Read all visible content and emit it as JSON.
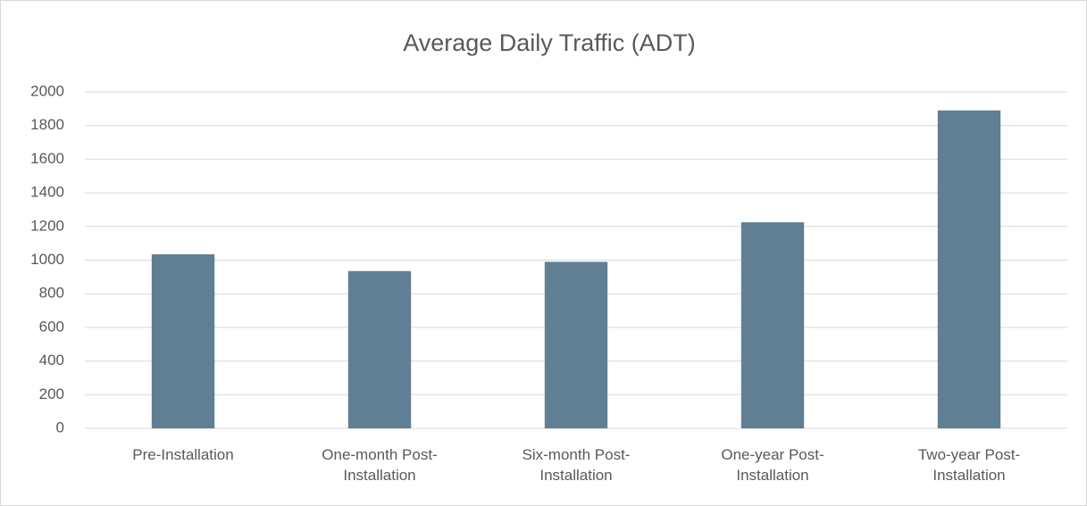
{
  "chart_data": {
    "type": "bar",
    "title": "Average Daily Traffic (ADT)",
    "categories": [
      "Pre-Installation",
      "One-month Post-Installation",
      "Six-month Post-Installation",
      "One-year Post-Installation",
      "Two-year Post-Installation"
    ],
    "values": [
      1035,
      935,
      990,
      1225,
      1890
    ],
    "color": "#607f94",
    "ylim": [
      0,
      2000
    ],
    "yticks": [
      0,
      200,
      400,
      600,
      800,
      1000,
      1200,
      1400,
      1600,
      1800,
      2000
    ],
    "grid": true
  }
}
